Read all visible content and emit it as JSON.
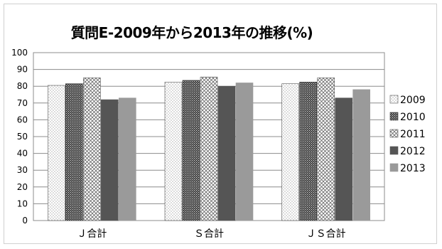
{
  "chart_data": {
    "type": "bar",
    "title": "質問E-2009年から2013年の推移(%)",
    "categories": [
      "Ｊ合計",
      "Ｓ合計",
      "ＪＳ合計"
    ],
    "series": [
      {
        "name": "2009",
        "values": [
          80.5,
          82.5,
          81.5
        ]
      },
      {
        "name": "2010",
        "values": [
          81.5,
          83.5,
          82.5
        ]
      },
      {
        "name": "2011",
        "values": [
          85,
          85.5,
          85
        ]
      },
      {
        "name": "2012",
        "values": [
          72,
          80,
          73
        ]
      },
      {
        "name": "2013",
        "values": [
          73,
          82,
          78
        ]
      }
    ],
    "ylim": [
      0,
      100
    ],
    "yticks": [
      0,
      10,
      20,
      30,
      40,
      50,
      60,
      70,
      80,
      90,
      100
    ],
    "grid": true,
    "legend": "right"
  }
}
